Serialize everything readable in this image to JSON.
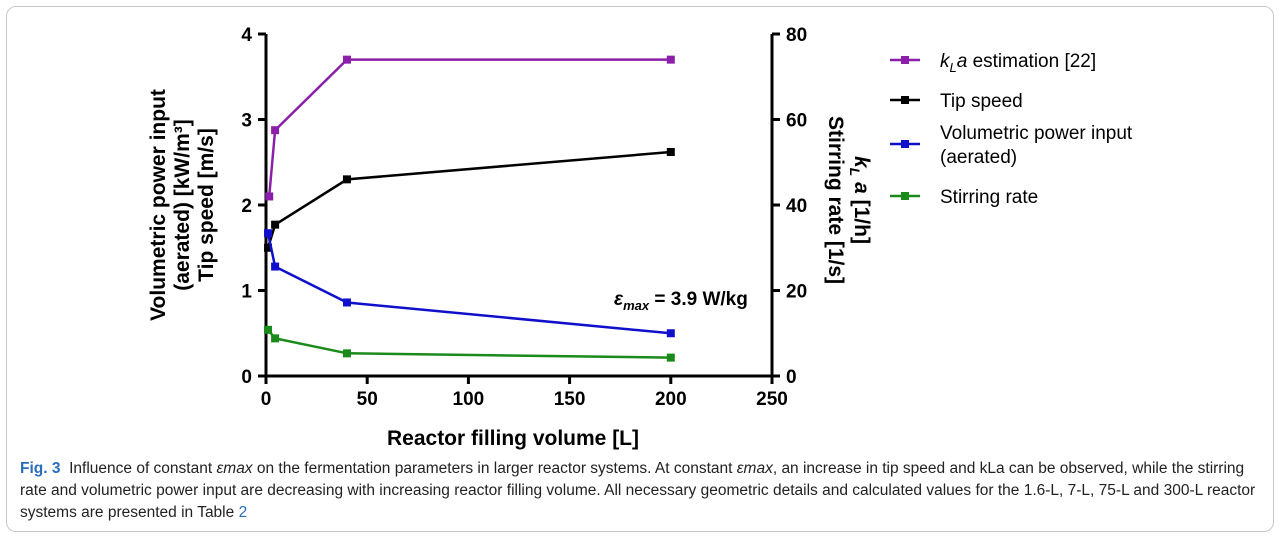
{
  "chart_data": {
    "type": "line",
    "xlabel": "Reactor filling volume [L]",
    "ylabel_left": [
      "Volumetric power input",
      "(aerated) [kW/m³]",
      "Tip speed [m/s]"
    ],
    "ylabel_right": [
      "kLa [1/h]",
      "Stirring rate [1/s]"
    ],
    "xlim": [
      0,
      250
    ],
    "ylim_left": [
      0,
      4
    ],
    "ylim_right": [
      0,
      80
    ],
    "x_ticks": [
      0,
      50,
      100,
      150,
      200,
      250
    ],
    "y_ticks_left": [
      0,
      1,
      2,
      3,
      4
    ],
    "y_ticks_right": [
      0,
      20,
      40,
      60,
      80
    ],
    "annotation": "εmax = 3.9 W/kg",
    "legend_position": "right",
    "grid": false,
    "series": [
      {
        "name": "kLa estimation [22]",
        "axis": "right",
        "color": "#8b1fa9",
        "x": [
          1.6,
          4.5,
          40,
          200
        ],
        "y": [
          42,
          57.5,
          74,
          74
        ]
      },
      {
        "name": "Tip speed",
        "axis": "left",
        "color": "#000000",
        "x": [
          1.0,
          4.5,
          40,
          200
        ],
        "y": [
          1.5,
          1.77,
          2.3,
          2.62
        ]
      },
      {
        "name": "Volumetric power input (aerated)",
        "axis": "left",
        "color": "#1010cc",
        "x": [
          1.0,
          4.5,
          40,
          200
        ],
        "y": [
          1.67,
          1.28,
          0.86,
          0.5
        ]
      },
      {
        "name": "Stirring rate",
        "axis": "right",
        "color": "#1a8a1a",
        "x": [
          1.0,
          4.5,
          40,
          200
        ],
        "y": [
          10.8,
          8.8,
          5.3,
          4.3
        ]
      }
    ]
  },
  "legend": {
    "items": [
      {
        "lines": [
          "kLa estimation [22]"
        ]
      },
      {
        "lines": [
          "Tip speed"
        ]
      },
      {
        "lines": [
          "Volumetric power input",
          "(aerated)"
        ]
      },
      {
        "lines": [
          "Stirring rate"
        ]
      }
    ]
  },
  "caption": {
    "label": "Fig. 3",
    "text_1": "Influence of constant ",
    "eps_1": "εmax",
    "text_2": " on the fermentation parameters in larger reactor systems. At constant ",
    "eps_2": "εmax",
    "text_3": ", an increase in tip speed and kLa can be observed, while the stirring rate and volumetric power input are decreasing with increasing reactor filling volume. All necessary geometric details and calculated values for the 1.6-L, 7-L, 75-L and 300-L reactor systems are presented in Table ",
    "table_ref": "2"
  }
}
